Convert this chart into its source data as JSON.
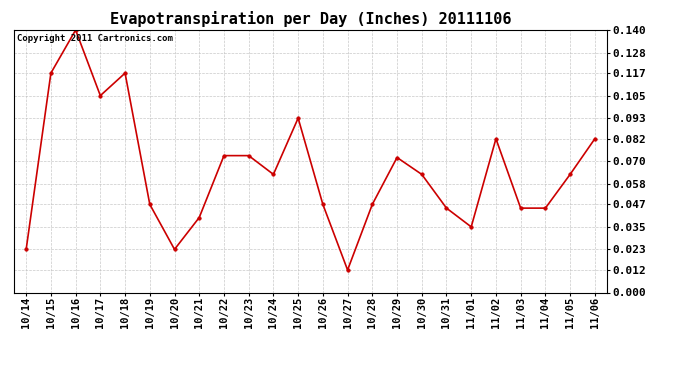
{
  "title": "Evapotranspiration per Day (Inches) 20111106",
  "copyright_text": "Copyright 2011 Cartronics.com",
  "labels": [
    "10/14",
    "10/15",
    "10/16",
    "10/17",
    "10/18",
    "10/19",
    "10/20",
    "10/21",
    "10/22",
    "10/23",
    "10/24",
    "10/25",
    "10/26",
    "10/27",
    "10/28",
    "10/29",
    "10/30",
    "10/31",
    "11/01",
    "11/02",
    "11/03",
    "11/04",
    "11/05",
    "11/06"
  ],
  "values": [
    0.023,
    0.117,
    0.14,
    0.105,
    0.117,
    0.047,
    0.023,
    0.04,
    0.073,
    0.073,
    0.063,
    0.093,
    0.047,
    0.012,
    0.047,
    0.072,
    0.063,
    0.045,
    0.035,
    0.082,
    0.045,
    0.045,
    0.063,
    0.082
  ],
  "line_color": "#cc0000",
  "marker": "o",
  "marker_size": 2.5,
  "ylim": [
    0.0,
    0.14
  ],
  "yticks": [
    0.0,
    0.012,
    0.023,
    0.035,
    0.047,
    0.058,
    0.07,
    0.082,
    0.093,
    0.105,
    0.117,
    0.128,
    0.14
  ],
  "bg_color": "#ffffff",
  "grid_color": "#bbbbbb",
  "title_fontsize": 11,
  "copyright_fontsize": 6.5,
  "tick_fontsize": 7.5,
  "ytick_fontsize": 8.0
}
